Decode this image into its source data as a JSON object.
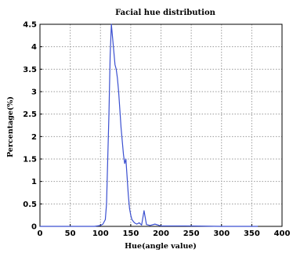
{
  "chart_data": {
    "type": "line",
    "title": "Facial hue distribution",
    "xlabel": "Hue(angle value)",
    "ylabel": "Percentage(%)",
    "xlim": [
      0,
      400
    ],
    "ylim": [
      0,
      4.5
    ],
    "xticks": [
      0,
      50,
      100,
      150,
      200,
      250,
      300,
      350,
      400
    ],
    "yticks": [
      0,
      0.5,
      1,
      1.5,
      2,
      2.5,
      3,
      3.5,
      4,
      4.5
    ],
    "xtick_labels": [
      "0",
      "50",
      "100",
      "150",
      "200",
      "250",
      "300",
      "350",
      "400"
    ],
    "ytick_labels": [
      "0",
      "0.5",
      "1",
      "1.5",
      "2",
      "2.5",
      "3",
      "3.5",
      "4",
      "4.5"
    ],
    "grid": true,
    "line_color": "#3a4fd0",
    "series": [
      {
        "x": [
          0,
          90,
          100,
          104,
          108,
          110,
          112,
          114,
          116,
          118,
          120,
          122,
          124,
          126,
          128,
          130,
          132,
          134,
          136,
          138,
          140,
          142,
          144,
          146,
          148,
          150,
          152,
          156,
          160,
          164,
          168,
          172,
          176,
          182,
          190,
          200,
          220,
          240,
          300,
          360
        ],
        "y": [
          0,
          0,
          0.02,
          0.05,
          0.15,
          0.5,
          1.5,
          2.5,
          3.8,
          4.5,
          4.2,
          3.9,
          3.6,
          3.5,
          3.3,
          3.0,
          2.6,
          2.2,
          1.9,
          1.6,
          1.4,
          1.5,
          1.1,
          0.7,
          0.4,
          0.25,
          0.15,
          0.08,
          0.05,
          0.08,
          0.03,
          0.35,
          0.04,
          0.02,
          0.05,
          0.01,
          0.01,
          0.01,
          0,
          0
        ]
      }
    ]
  }
}
